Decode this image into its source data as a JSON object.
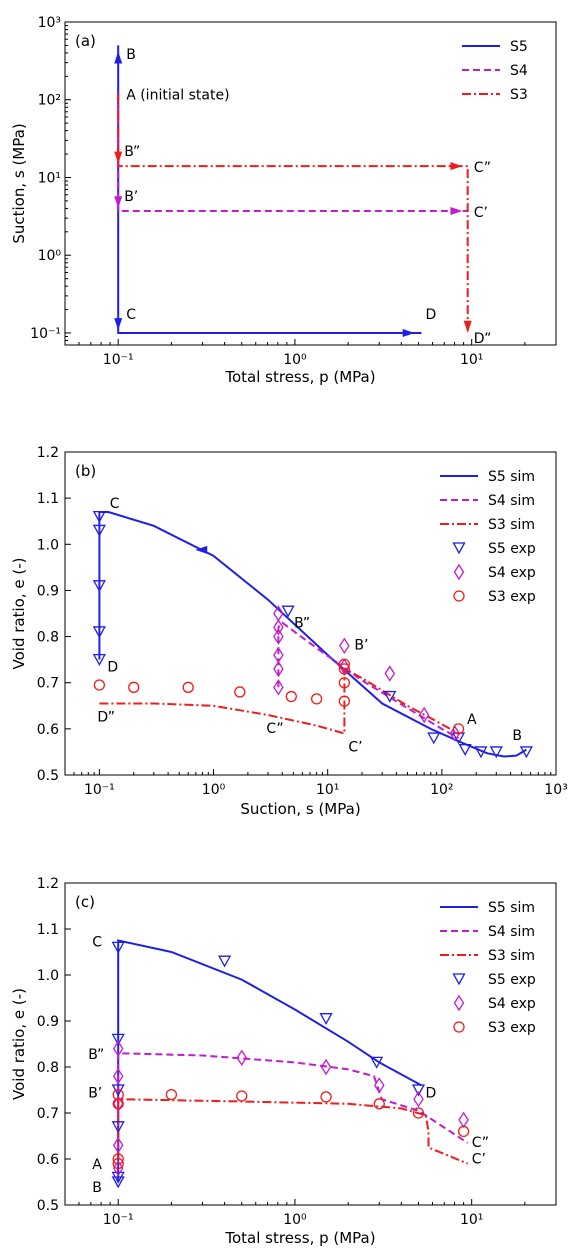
{
  "colors": {
    "S5": "#1f1fe8",
    "S4": "#c21bd0",
    "S3": "#ee1c1c",
    "axis": "#000000"
  },
  "chart_data": [
    {
      "type": "line",
      "panel_label": "(a)",
      "xlabel": "Total stress, p (MPa)",
      "ylabel": "Suction, s (MPa)",
      "xscale": "log",
      "yscale": "log",
      "xlim": [
        0.05,
        30
      ],
      "ylim": [
        0.07,
        1000
      ],
      "xticks": [
        "10⁻¹",
        "10⁰",
        "10¹"
      ],
      "yticks": [
        "10⁻¹",
        "10⁰",
        "10¹",
        "10²",
        "10³"
      ],
      "legend": {
        "position": "top-right",
        "entries": [
          "S5",
          "S4",
          "S3"
        ]
      },
      "series": [
        {
          "name": "S5",
          "style": "solid",
          "x": [
            0.1,
            0.1,
            0.1,
            0.1,
            5.2
          ],
          "y": [
            120,
            500,
            500,
            0.1,
            0.1
          ]
        },
        {
          "name": "S4",
          "style": "dashed",
          "x": [
            0.1,
            0.1,
            9.5,
            9.5
          ],
          "y": [
            120,
            3.7,
            3.7,
            3.7
          ]
        },
        {
          "name": "S3",
          "style": "dashdot",
          "x": [
            0.1,
            0.1,
            9.5,
            9.5
          ],
          "y": [
            120,
            14,
            14,
            0.1
          ]
        }
      ],
      "annotations": [
        "B",
        "A (initial state)",
        "B”",
        "B’",
        "C",
        "D",
        "C”",
        "C’",
        "D”"
      ]
    },
    {
      "type": "line",
      "panel_label": "(b)",
      "xlabel": "Suction, s (MPa)",
      "ylabel": "Void ratio, e (-)",
      "xscale": "log",
      "xlim": [
        0.05,
        1000
      ],
      "ylim": [
        0.5,
        1.2
      ],
      "xticks": [
        "10⁻¹",
        "10⁰",
        "10¹",
        "10²",
        "10³"
      ],
      "yticks": [
        "0.5",
        "0.6",
        "0.7",
        "0.8",
        "0.9",
        "1.0",
        "1.1",
        "1.2"
      ],
      "legend": {
        "position": "top-right",
        "entries": [
          "S5 sim",
          "S4 sim",
          "S3 sim",
          "S5 exp",
          "S4 exp",
          "S3 exp"
        ]
      },
      "series": [
        {
          "name": "S5 sim",
          "style": "solid",
          "x": [
            0.1,
            0.1,
            0.12,
            0.3,
            1,
            3,
            10,
            30,
            80,
            150,
            250,
            350,
            450,
            550
          ],
          "y": [
            0.75,
            1.07,
            1.07,
            1.04,
            0.975,
            0.88,
            0.76,
            0.655,
            0.6,
            0.57,
            0.547,
            0.54,
            0.542,
            0.555
          ]
        },
        {
          "name": "S4 sim",
          "style": "dashed",
          "x": [
            3.7,
            3.7,
            4,
            8,
            20,
            50,
            100,
            140
          ],
          "y": [
            0.69,
            0.82,
            0.83,
            0.775,
            0.705,
            0.645,
            0.6,
            0.58
          ]
        },
        {
          "name": "S3 sim",
          "style": "dashdot",
          "x": [
            0.1,
            0.3,
            1,
            3,
            8,
            14,
            14,
            20,
            50,
            100,
            140
          ],
          "y": [
            0.655,
            0.655,
            0.65,
            0.63,
            0.607,
            0.59,
            0.73,
            0.71,
            0.65,
            0.61,
            0.59
          ]
        },
        {
          "name": "S5 exp",
          "marker": "triangle-down",
          "x": [
            0.1,
            0.1,
            0.1,
            0.1,
            0.1,
            4.5,
            35,
            85,
            140,
            160,
            220,
            300,
            550
          ],
          "y": [
            1.06,
            1.03,
            0.91,
            0.81,
            0.75,
            0.855,
            0.67,
            0.58,
            0.58,
            0.555,
            0.55,
            0.55,
            0.55
          ]
        },
        {
          "name": "S4 exp",
          "marker": "diamond",
          "x": [
            3.7,
            3.7,
            3.7,
            3.7,
            3.7,
            3.7,
            14,
            14,
            35,
            70,
            130
          ],
          "y": [
            0.82,
            0.8,
            0.76,
            0.73,
            0.69,
            0.85,
            0.78,
            0.735,
            0.72,
            0.63,
            0.59
          ]
        },
        {
          "name": "S3 exp",
          "marker": "circle",
          "x": [
            0.1,
            0.2,
            0.6,
            1.7,
            4.8,
            8,
            14,
            14,
            14,
            14,
            140
          ],
          "y": [
            0.695,
            0.69,
            0.69,
            0.68,
            0.67,
            0.665,
            0.74,
            0.73,
            0.7,
            0.66,
            0.6
          ]
        }
      ],
      "annotations": [
        "C",
        "D",
        "D”",
        "C”",
        "B”",
        "B’",
        "C’",
        "A",
        "B"
      ]
    },
    {
      "type": "line",
      "panel_label": "(c)",
      "xlabel": "Total stress, p (MPa)",
      "ylabel": "Void ratio, e (-)",
      "xscale": "log",
      "xlim": [
        0.05,
        30
      ],
      "ylim": [
        0.5,
        1.2
      ],
      "xticks": [
        "10⁻¹",
        "10⁰",
        "10¹"
      ],
      "yticks": [
        "0.5",
        "0.6",
        "0.7",
        "0.8",
        "0.9",
        "1.0",
        "1.1",
        "1.2"
      ],
      "legend": {
        "position": "top-right",
        "entries": [
          "S5 sim",
          "S4 sim",
          "S3 sim",
          "S5 exp",
          "S4 exp",
          "S3 exp"
        ]
      },
      "series": [
        {
          "name": "S5 sim",
          "style": "solid",
          "x": [
            0.1,
            0.1,
            0.1,
            0.2,
            0.5,
            1,
            2,
            3,
            5.2
          ],
          "y": [
            0.55,
            0.58,
            1.075,
            1.05,
            0.99,
            0.925,
            0.855,
            0.81,
            0.76
          ]
        },
        {
          "name": "S4 sim",
          "style": "dashed",
          "x": [
            0.1,
            0.1,
            0.1,
            0.3,
            1,
            2,
            2.8,
            3.1,
            5,
            9.5
          ],
          "y": [
            0.6,
            0.83,
            0.83,
            0.825,
            0.81,
            0.795,
            0.78,
            0.73,
            0.705,
            0.635
          ]
        },
        {
          "name": "S3 sim",
          "style": "dashdot",
          "x": [
            0.1,
            0.1,
            0.1,
            0.5,
            2,
            4,
            5.5,
            5.7,
            5.7,
            9.5
          ],
          "y": [
            0.6,
            0.73,
            0.73,
            0.725,
            0.72,
            0.71,
            0.695,
            0.66,
            0.625,
            0.59
          ]
        },
        {
          "name": "S5 exp",
          "marker": "triangle-down",
          "x": [
            0.1,
            0.1,
            0.1,
            0.1,
            0.1,
            0.1,
            0.4,
            1.5,
            2.9,
            5
          ],
          "y": [
            1.06,
            0.86,
            0.75,
            0.67,
            0.56,
            0.55,
            1.03,
            0.905,
            0.81,
            0.75
          ]
        },
        {
          "name": "S4 exp",
          "marker": "diamond",
          "x": [
            0.1,
            0.1,
            0.1,
            0.1,
            0.1,
            0.5,
            1.5,
            3,
            5,
            9
          ],
          "y": [
            0.84,
            0.78,
            0.72,
            0.63,
            0.58,
            0.82,
            0.8,
            0.76,
            0.73,
            0.685
          ]
        },
        {
          "name": "S3 exp",
          "marker": "circle",
          "x": [
            0.1,
            0.1,
            0.1,
            0.1,
            0.2,
            0.5,
            1.5,
            3,
            5,
            9
          ],
          "y": [
            0.74,
            0.72,
            0.6,
            0.59,
            0.74,
            0.737,
            0.735,
            0.72,
            0.7,
            0.66
          ]
        }
      ],
      "annotations": [
        "C",
        "B”",
        "B’",
        "A",
        "B",
        "D",
        "C”",
        "C’"
      ]
    }
  ]
}
